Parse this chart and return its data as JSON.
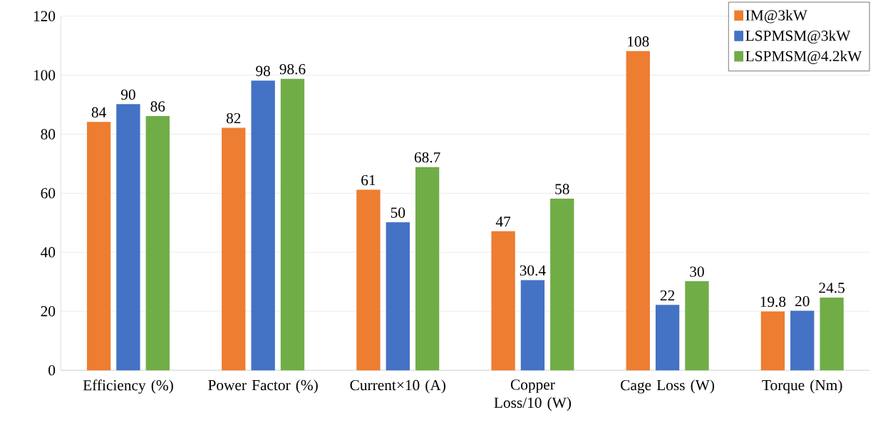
{
  "chart_data": {
    "type": "bar",
    "categories": [
      "Efficiency (%)",
      "Power Factor (%)",
      "Current×10 (A)",
      "Copper Loss/10 (W)",
      "Cage Loss (W)",
      "Torque (Nm)"
    ],
    "series": [
      {
        "name": "IM@3kW",
        "color": "#ed7d31",
        "values": [
          84,
          82,
          61,
          47,
          108,
          19.8
        ]
      },
      {
        "name": "LSPMSM@3kW",
        "color": "#4472c4",
        "values": [
          90,
          98,
          50,
          30.4,
          22,
          20
        ]
      },
      {
        "name": "LSPMSM@4.2kW",
        "color": "#70ad47",
        "values": [
          86,
          98.6,
          68.7,
          58,
          30,
          24.5
        ]
      }
    ],
    "ylim": [
      0,
      120
    ],
    "yticks": [
      0,
      20,
      40,
      60,
      80,
      100,
      120
    ],
    "grid": "y",
    "legend": "top right",
    "data_labels": true
  }
}
